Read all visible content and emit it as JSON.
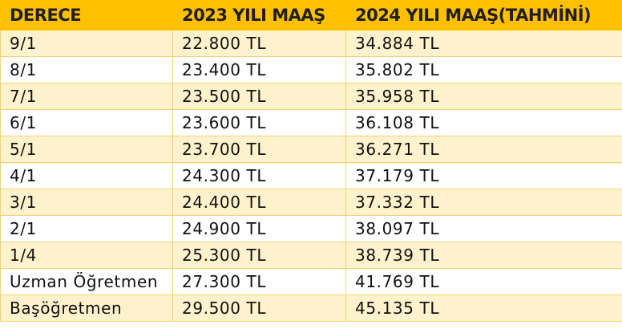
{
  "table": {
    "headers": [
      "DERECE",
      "2023 YILI MAAŞ",
      "2024 YILI MAAŞ(TAHMİNİ)"
    ],
    "rows": [
      [
        "9/1",
        "22.800 TL",
        "34.884 TL"
      ],
      [
        "8/1",
        "23.400 TL",
        "35.802 TL"
      ],
      [
        "7/1",
        "23.500 TL",
        "35.958 TL"
      ],
      [
        "6/1",
        "23.600 TL",
        "36.108 TL"
      ],
      [
        "5/1",
        "23.700 TL",
        "36.271 TL"
      ],
      [
        "4/1",
        "24.300 TL",
        "37.179 TL"
      ],
      [
        "3/1",
        "24.400 TL",
        "37.332 TL"
      ],
      [
        "2/1",
        "24.900 TL",
        "38.097 TL"
      ],
      [
        "1/4",
        "25.300 TL",
        "38.739 TL"
      ],
      [
        "Uzman Öğretmen",
        "27.300 TL",
        "41.769 TL"
      ],
      [
        "Başöğretmen",
        "29.500 TL",
        "45.135 TL"
      ]
    ]
  },
  "colors": {
    "header_bg": "#fec000",
    "stripe_bg": "#fff2cc",
    "border": "#f2d27a"
  }
}
